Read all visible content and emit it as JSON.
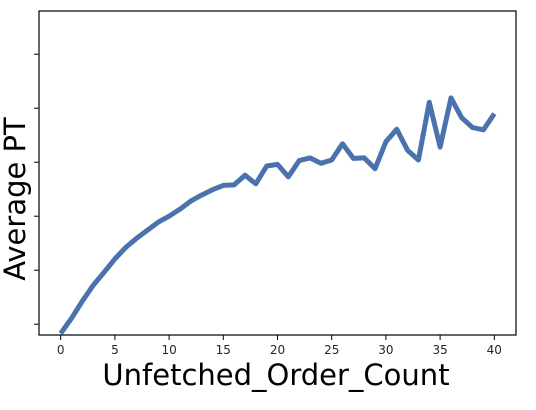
{
  "chart_data": {
    "type": "line",
    "title": "",
    "xlabel": "Unfetched_Order_Count",
    "ylabel": "Average PT",
    "xlim": [
      -2,
      42
    ],
    "ylim": [
      0,
      6
    ],
    "x_ticks": [
      0,
      5,
      10,
      15,
      20,
      25,
      30,
      35,
      40
    ],
    "x_tick_labels": [
      "0",
      "5",
      "10",
      "15",
      "20",
      "25",
      "30",
      "35",
      "40"
    ],
    "y_ticks": [
      0.2,
      1.2,
      2.2,
      3.2,
      4.2,
      5.2
    ],
    "y_tick_labels": [
      "",
      "",
      "",
      "",
      "",
      ""
    ],
    "grid": false,
    "line_color": "#4a72ac",
    "series": [
      {
        "x": [
          0,
          1,
          2,
          3,
          4,
          5,
          6,
          7,
          8,
          9,
          10,
          11,
          12,
          13,
          14,
          15,
          16,
          17,
          18,
          19,
          20,
          21,
          22,
          23,
          24,
          25,
          26,
          27,
          28,
          29,
          30,
          31,
          32,
          33,
          34,
          35,
          36,
          37,
          38,
          39,
          40
        ],
        "values": [
          0.03,
          0.31,
          0.63,
          0.92,
          1.16,
          1.41,
          1.62,
          1.79,
          1.94,
          2.09,
          2.2,
          2.33,
          2.48,
          2.59,
          2.69,
          2.77,
          2.78,
          2.96,
          2.8,
          3.13,
          3.16,
          2.93,
          3.23,
          3.28,
          3.18,
          3.24,
          3.54,
          3.27,
          3.28,
          3.08,
          3.58,
          3.81,
          3.42,
          3.24,
          4.31,
          3.48,
          4.39,
          4.02,
          3.84,
          3.8,
          4.1
        ]
      }
    ]
  }
}
